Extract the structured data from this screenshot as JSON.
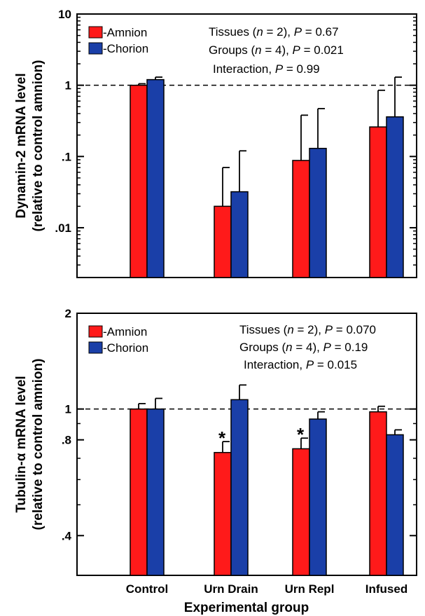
{
  "xlabel": "Experimental group",
  "categories": [
    "Control",
    "Urn Drain",
    "Urn Repl",
    "Infused"
  ],
  "colors": {
    "amnion": "#ff1a1a",
    "chorion": "#1a3fa8"
  },
  "chart_data": [
    {
      "type": "bar",
      "scale": "log",
      "ylabel_line1": "Dynamin-2 mRNA level",
      "ylabel_line2": "(relative to control amnion)",
      "ylim": [
        0.002,
        10
      ],
      "yticks": [
        {
          "value": 10,
          "label": "10"
        },
        {
          "value": 1,
          "label": "1"
        },
        {
          "value": 0.1,
          "label": ".1"
        },
        {
          "value": 0.01,
          "label": ".01"
        }
      ],
      "reference_line": 1,
      "categories": [
        "Control",
        "Urn Drain",
        "Urn Repl",
        "Infused"
      ],
      "series": [
        {
          "name": "-Amnion",
          "values": [
            1.0,
            0.02,
            0.088,
            0.26
          ],
          "errors_upper": [
            1.05,
            0.07,
            0.38,
            0.85
          ]
        },
        {
          "name": "-Chorion",
          "values": [
            1.2,
            0.032,
            0.13,
            0.36
          ],
          "errors_upper": [
            1.3,
            0.12,
            0.47,
            1.3
          ]
        }
      ],
      "stats": [
        "Tissues (n = 2), P = 0.67",
        "Groups (n = 4), P = 0.021",
        "Interaction, P = 0.99"
      ],
      "significance_markers": []
    },
    {
      "type": "bar",
      "scale": "log",
      "ylabel_line1": "Tubulin-α mRNA level",
      "ylabel_line2": "(relative to control amnion)",
      "ylim": [
        0.3,
        2
      ],
      "yticks": [
        {
          "value": 2,
          "label": "2"
        },
        {
          "value": 1,
          "label": "1"
        },
        {
          "value": 0.8,
          "label": ".8"
        },
        {
          "value": 0.4,
          "label": ".4"
        }
      ],
      "reference_line": 1,
      "categories": [
        "Control",
        "Urn Drain",
        "Urn Repl",
        "Infused"
      ],
      "series": [
        {
          "name": "-Amnion",
          "values": [
            1.0,
            0.73,
            0.75,
            0.98
          ],
          "errors_upper": [
            1.04,
            0.79,
            0.81,
            1.02
          ]
        },
        {
          "name": "-Chorion",
          "values": [
            1.0,
            1.07,
            0.93,
            0.83
          ],
          "errors_upper": [
            1.08,
            1.19,
            0.98,
            0.86
          ]
        }
      ],
      "stats": [
        "Tissues (n = 2), P = 0.070",
        "Groups (n = 4), P = 0.19",
        "Interaction, P = 0.015"
      ],
      "significance_markers": [
        {
          "category": "Urn Drain",
          "series": "-Amnion",
          "symbol": "*"
        },
        {
          "category": "Urn Repl",
          "series": "-Amnion",
          "symbol": "*"
        }
      ]
    }
  ]
}
